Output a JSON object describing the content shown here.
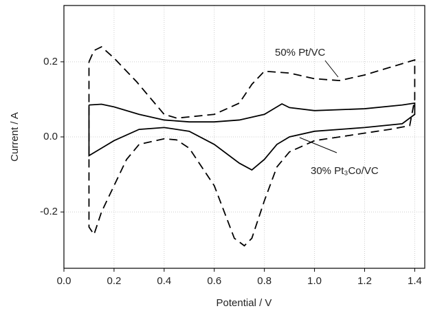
{
  "chart_data": {
    "type": "line",
    "xlabel": "Potential / V",
    "ylabel": "Current / A",
    "xlim": [
      0,
      1.44
    ],
    "ylim": [
      -0.35,
      0.35
    ],
    "xticks": [
      {
        "value": 0,
        "label": "0.0"
      },
      {
        "value": 0.2,
        "label": "0.2"
      },
      {
        "value": 0.4,
        "label": "0.4"
      },
      {
        "value": 0.6,
        "label": "0.6"
      },
      {
        "value": 0.8,
        "label": "0.8"
      },
      {
        "value": 1,
        "label": "1.0"
      },
      {
        "value": 1.2,
        "label": "1.2"
      },
      {
        "value": 1.4,
        "label": "1.4"
      }
    ],
    "yticks": [
      {
        "value": -0.2,
        "label": "-0.2"
      },
      {
        "value": 0,
        "label": "0.0"
      },
      {
        "value": 0.2,
        "label": "0.2"
      }
    ],
    "grid": true,
    "series": [
      {
        "name": "50% Pt/VC",
        "color": "#000000",
        "line_style": "dashed",
        "x": [
          0.1,
          0.12,
          0.15,
          0.2,
          0.29,
          0.4,
          0.45,
          0.6,
          0.7,
          0.75,
          0.8,
          0.9,
          1.0,
          1.1,
          1.2,
          1.3,
          1.4,
          1.4,
          1.38,
          1.3,
          1.2,
          1.0,
          0.9,
          0.85,
          0.8,
          0.75,
          0.72,
          0.68,
          0.6,
          0.5,
          0.45,
          0.4,
          0.3,
          0.25,
          0.2,
          0.15,
          0.12,
          0.1,
          0.1
        ],
        "values": [
          0.2,
          0.23,
          0.24,
          0.21,
          0.147,
          0.06,
          0.05,
          0.06,
          0.09,
          0.14,
          0.175,
          0.17,
          0.155,
          0.15,
          0.165,
          0.185,
          0.205,
          0.1,
          0.03,
          0.02,
          0.01,
          -0.01,
          -0.04,
          -0.08,
          -0.17,
          -0.27,
          -0.29,
          -0.27,
          -0.13,
          -0.03,
          -0.008,
          -0.005,
          -0.02,
          -0.06,
          -0.13,
          -0.2,
          -0.26,
          -0.24,
          0.2
        ]
      },
      {
        "name": "30% Pt₃Co/VC",
        "color": "#000000",
        "line_style": "solid",
        "x": [
          0.1,
          0.15,
          0.2,
          0.3,
          0.4,
          0.5,
          0.6,
          0.7,
          0.8,
          0.85,
          0.87,
          0.9,
          1.0,
          1.2,
          1.35,
          1.4,
          1.4,
          1.35,
          1.2,
          1.0,
          0.9,
          0.85,
          0.8,
          0.75,
          0.7,
          0.6,
          0.5,
          0.4,
          0.3,
          0.2,
          0.15,
          0.1,
          0.1
        ],
        "values": [
          0.085,
          0.087,
          0.08,
          0.06,
          0.045,
          0.04,
          0.04,
          0.045,
          0.06,
          0.08,
          0.088,
          0.078,
          0.07,
          0.075,
          0.085,
          0.09,
          0.06,
          0.035,
          0.025,
          0.015,
          0.0,
          -0.02,
          -0.06,
          -0.088,
          -0.07,
          -0.02,
          0.015,
          0.025,
          0.02,
          -0.01,
          -0.03,
          -0.05,
          0.085
        ]
      }
    ]
  }
}
